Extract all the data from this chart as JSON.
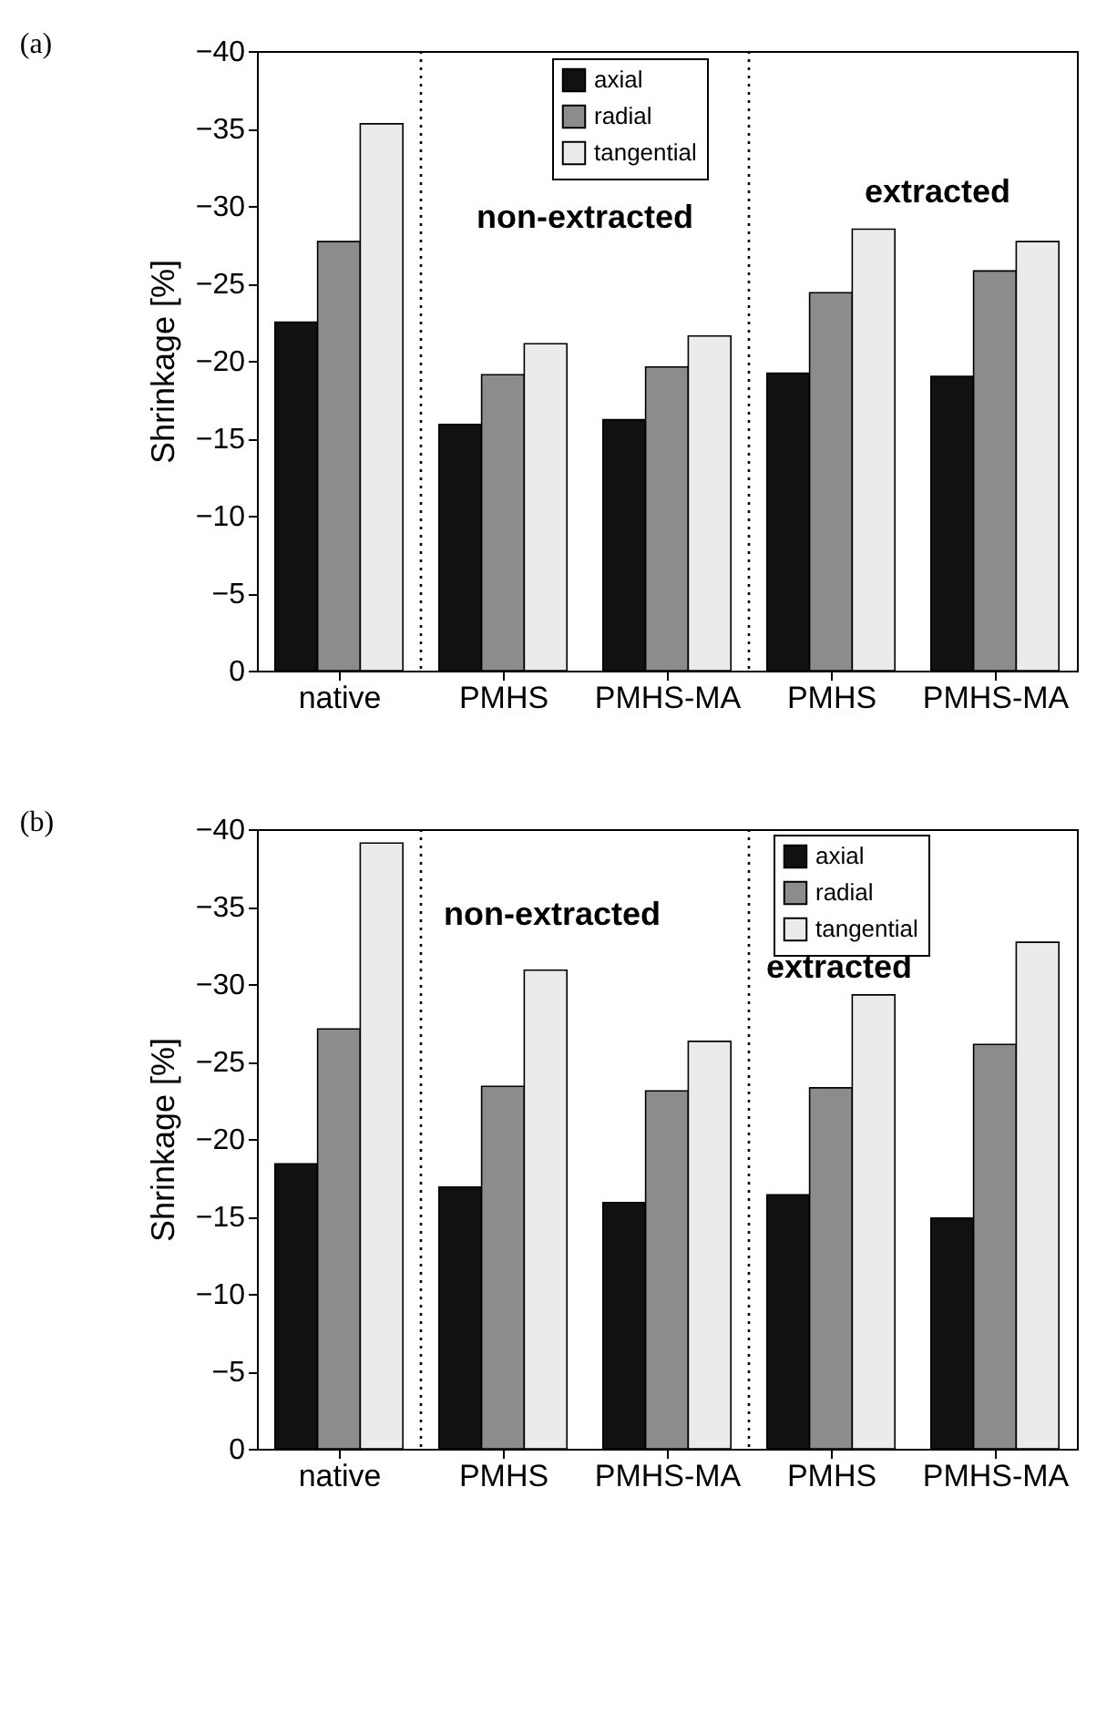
{
  "chart_data": [
    {
      "type": "bar",
      "title": "(a)",
      "ylabel": "Shrinkage [%]",
      "categories": [
        "native",
        "PMHS",
        "PMHS-MA",
        "PMHS",
        "PMHS-MA"
      ],
      "series": [
        {
          "name": "axial",
          "color": "#111111",
          "values": [
            -22.5,
            -15.9,
            -16.2,
            -19.2,
            -19.0
          ]
        },
        {
          "name": "radial",
          "color": "#8c8c8c",
          "values": [
            -27.7,
            -19.1,
            -19.6,
            -24.4,
            -25.8
          ]
        },
        {
          "name": "tangential",
          "color": "#ebebeb",
          "values": [
            -35.3,
            -21.1,
            -21.6,
            -28.5,
            -27.7
          ]
        }
      ],
      "ylim": [
        0,
        -40
      ],
      "yticks": [
        -40,
        -35,
        -30,
        -25,
        -20,
        -15,
        -10,
        -5,
        0
      ],
      "legend": "top",
      "grid": false,
      "annotations": [
        "non-extracted",
        "extracted"
      ]
    },
    {
      "type": "bar",
      "title": "(b)",
      "ylabel": "Shrinkage [%]",
      "categories": [
        "native",
        "PMHS",
        "PMHS-MA",
        "PMHS",
        "PMHS-MA"
      ],
      "series": [
        {
          "name": "axial",
          "color": "#111111",
          "values": [
            -18.4,
            -16.9,
            -15.9,
            -16.4,
            -14.9
          ]
        },
        {
          "name": "radial",
          "color": "#8c8c8c",
          "values": [
            -27.1,
            -23.4,
            -23.1,
            -23.3,
            -26.1
          ]
        },
        {
          "name": "tangential",
          "color": "#ebebeb",
          "values": [
            -39.1,
            -30.9,
            -26.3,
            -29.3,
            -32.7
          ]
        }
      ],
      "ylim": [
        0,
        -40
      ],
      "yticks": [
        -40,
        -35,
        -30,
        -25,
        -20,
        -15,
        -10,
        -5,
        0
      ],
      "legend": "top right",
      "grid": false,
      "annotations": [
        "non-extracted",
        "extracted"
      ]
    }
  ]
}
